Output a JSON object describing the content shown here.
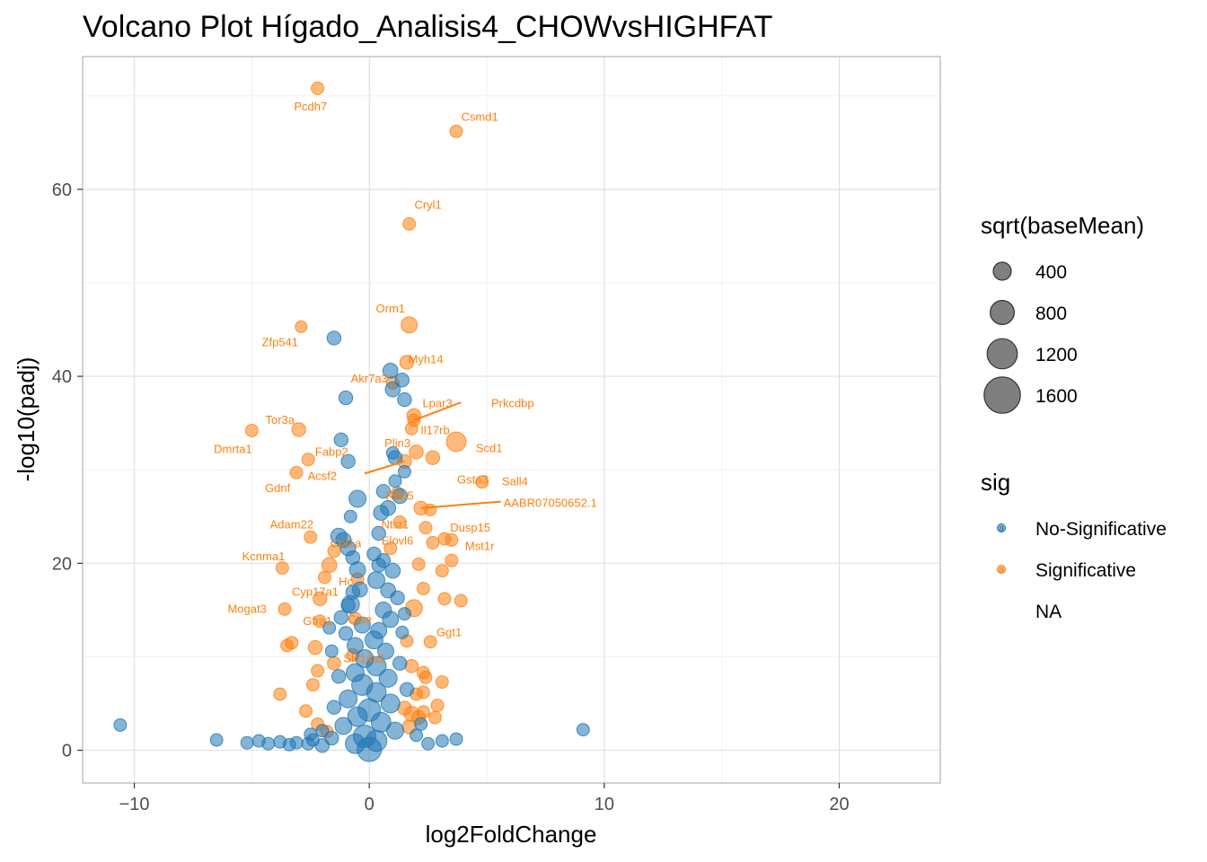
{
  "chart_data": {
    "type": "scatter",
    "title": "Volcano Plot Hígado_Analisis4_CHOWvsHIGHFAT",
    "xlabel": "log2FoldChange",
    "ylabel": "-log10(padj)",
    "xlim": [
      -12.2,
      24.3
    ],
    "ylim": [
      -3.5,
      74.2
    ],
    "x_ticks": [
      -10,
      0,
      10,
      20
    ],
    "y_ticks": [
      0,
      20,
      40,
      60
    ],
    "x_tick_labels": [
      "−10",
      "0",
      "10",
      "20"
    ],
    "y_tick_labels": [
      "0",
      "20",
      "40",
      "60"
    ],
    "grid": true,
    "legend_position": "right",
    "colors": {
      "No-Significative": "#1f77b4",
      "Significative": "#ff7f0e"
    },
    "legend": {
      "size_title": "sqrt(baseMean)",
      "size_entries": [
        {
          "label": "400",
          "value": 400
        },
        {
          "label": "800",
          "value": 800
        },
        {
          "label": "1200",
          "value": 1200
        },
        {
          "label": "1600",
          "value": 1600
        }
      ],
      "color_title": "sig",
      "color_entries": [
        {
          "label": "No-Significative",
          "key_glyph": "a",
          "color": "#1f77b4"
        },
        {
          "label": "Significative",
          "key_glyph": "a",
          "color": "#ff7f0e"
        },
        {
          "label": "NA",
          "key_glyph": "",
          "color": ""
        }
      ]
    },
    "series": [
      {
        "name": "Significative",
        "points": [
          {
            "x": -2.2,
            "y": 70.8,
            "size": 300,
            "label": "Pcdh7"
          },
          {
            "x": 3.7,
            "y": 66.2,
            "size": 300,
            "label": "Csmd1"
          },
          {
            "x": 1.7,
            "y": 56.3,
            "size": 300,
            "label": "Cryl1"
          },
          {
            "x": 1.7,
            "y": 45.5,
            "size": 600,
            "label": "Orm1"
          },
          {
            "x": -2.9,
            "y": 45.3,
            "size": 250,
            "label": "Zfp541"
          },
          {
            "x": 1.6,
            "y": 41.5,
            "size": 400,
            "label": "Myh14"
          },
          {
            "x": 1.0,
            "y": 39.3,
            "size": 300,
            "label": "Akr7a3"
          },
          {
            "x": 1.9,
            "y": 35.8,
            "size": 400,
            "label": "Lpar3"
          },
          {
            "x": 1.9,
            "y": 35.3,
            "size": 300,
            "label": "Prkcdbp"
          },
          {
            "x": -3.0,
            "y": 34.3,
            "size": 400,
            "label": "Tor3a"
          },
          {
            "x": -5.0,
            "y": 34.2,
            "size": 300,
            "label": "Dmrta1"
          },
          {
            "x": 1.8,
            "y": 34.4,
            "size": 300,
            "label": "Il17rb"
          },
          {
            "x": 3.7,
            "y": 33.0,
            "size": 1000,
            "label": "Scd1"
          },
          {
            "x": -2.6,
            "y": 31.1,
            "size": 300,
            "label": "Fabp2"
          },
          {
            "x": 2.0,
            "y": 31.9,
            "size": 400,
            "label": "Plin3"
          },
          {
            "x": 1.5,
            "y": 30.9,
            "size": 400,
            "label": "Acsf2"
          },
          {
            "x": 2.7,
            "y": 31.3,
            "size": 400,
            "label": "Gsta3"
          },
          {
            "x": 4.8,
            "y": 28.7,
            "size": 300,
            "label": "Sall4"
          },
          {
            "x": -3.1,
            "y": 29.7,
            "size": 300,
            "label": "Gdnf"
          },
          {
            "x": 1.2,
            "y": 27.5,
            "size": 300,
            "label": "Rbp5"
          },
          {
            "x": 2.2,
            "y": 25.9,
            "size": 400,
            "label": "AABR07050652.1"
          },
          {
            "x": 2.6,
            "y": 25.7,
            "size": 250
          },
          {
            "x": -2.5,
            "y": 22.8,
            "size": 300,
            "label": "Adam22"
          },
          {
            "x": 1.3,
            "y": 24.4,
            "size": 300,
            "label": "Ntsr1"
          },
          {
            "x": 2.4,
            "y": 23.8,
            "size": 300,
            "label": "Dusp15"
          },
          {
            "x": 3.2,
            "y": 22.6,
            "size": 300
          },
          {
            "x": 3.5,
            "y": 22.5,
            "size": 300
          },
          {
            "x": 2.7,
            "y": 22.2,
            "size": 300
          },
          {
            "x": 3.5,
            "y": 20.3,
            "size": 300,
            "label": "Mst1r"
          },
          {
            "x": -1.5,
            "y": 21.3,
            "size": 300,
            "label": "Cpt1a"
          },
          {
            "x": 0.9,
            "y": 21.6,
            "size": 300,
            "label": "Elovl6"
          },
          {
            "x": -3.7,
            "y": 19.5,
            "size": 300,
            "label": "Kcnma1"
          },
          {
            "x": -1.7,
            "y": 19.8,
            "size": 500
          },
          {
            "x": 2.1,
            "y": 19.9,
            "size": 300
          },
          {
            "x": 3.1,
            "y": 19.2,
            "size": 300
          },
          {
            "x": -1.9,
            "y": 18.5,
            "size": 300,
            "label": "Cyp17a1"
          },
          {
            "x": -0.5,
            "y": 18.3,
            "size": 300,
            "label": "Hc"
          },
          {
            "x": 2.3,
            "y": 17.3,
            "size": 300
          },
          {
            "x": -2.1,
            "y": 16.2,
            "size": 400
          },
          {
            "x": 3.2,
            "y": 16.2,
            "size": 300
          },
          {
            "x": 3.9,
            "y": 16.0,
            "size": 300
          },
          {
            "x": -3.6,
            "y": 15.1,
            "size": 300,
            "label": "Mogat3"
          },
          {
            "x": 1.9,
            "y": 15.2,
            "size": 700
          },
          {
            "x": -2.1,
            "y": 13.8,
            "size": 300,
            "label": "Gfra1"
          },
          {
            "x": -0.6,
            "y": 14.1,
            "size": 300,
            "label": "Ctse"
          },
          {
            "x": -3.3,
            "y": 11.5,
            "size": 300
          },
          {
            "x": -3.5,
            "y": 11.2,
            "size": 300
          },
          {
            "x": 2.6,
            "y": 11.6,
            "size": 300,
            "label": "Ggt1"
          },
          {
            "x": -2.3,
            "y": 11.0,
            "size": 400
          },
          {
            "x": 1.6,
            "y": 11.7,
            "size": 300
          },
          {
            "x": -0.7,
            "y": 10.2,
            "size": 300,
            "label": "Slc14a1"
          },
          {
            "x": -1.5,
            "y": 9.3,
            "size": 350
          },
          {
            "x": 1.8,
            "y": 9.0,
            "size": 350
          },
          {
            "x": -2.2,
            "y": 8.5,
            "size": 300
          },
          {
            "x": 2.3,
            "y": 8.3,
            "size": 300
          },
          {
            "x": 2.4,
            "y": 7.8,
            "size": 300
          },
          {
            "x": 3.1,
            "y": 7.3,
            "size": 300
          },
          {
            "x": -2.4,
            "y": 7.0,
            "size": 300
          },
          {
            "x": 2.0,
            "y": 6.0,
            "size": 300
          },
          {
            "x": 2.3,
            "y": 6.2,
            "size": 300
          },
          {
            "x": -3.8,
            "y": 6.0,
            "size": 300
          },
          {
            "x": -2.7,
            "y": 4.2,
            "size": 300
          },
          {
            "x": 2.9,
            "y": 4.8,
            "size": 300
          },
          {
            "x": 1.5,
            "y": 4.5,
            "size": 400
          },
          {
            "x": 1.8,
            "y": 3.9,
            "size": 500
          },
          {
            "x": 2.1,
            "y": 3.5,
            "size": 400
          },
          {
            "x": 2.8,
            "y": 3.5,
            "size": 300
          },
          {
            "x": -2.2,
            "y": 2.8,
            "size": 300
          },
          {
            "x": 1.7,
            "y": 2.5,
            "size": 400
          },
          {
            "x": 2.3,
            "y": 4.1,
            "size": 300
          },
          {
            "x": -1.8,
            "y": 2.0,
            "size": 300
          }
        ]
      },
      {
        "name": "No-Significative",
        "points": [
          {
            "x": -1.5,
            "y": 44.1,
            "size": 400
          },
          {
            "x": 0.9,
            "y": 40.6,
            "size": 500
          },
          {
            "x": 1.4,
            "y": 39.6,
            "size": 400
          },
          {
            "x": 1.0,
            "y": 38.6,
            "size": 500
          },
          {
            "x": -1.0,
            "y": 37.7,
            "size": 400
          },
          {
            "x": 1.5,
            "y": 37.5,
            "size": 400
          },
          {
            "x": -1.2,
            "y": 33.2,
            "size": 400
          },
          {
            "x": -0.9,
            "y": 30.9,
            "size": 400
          },
          {
            "x": 1.1,
            "y": 31.3,
            "size": 400
          },
          {
            "x": 1.0,
            "y": 31.8,
            "size": 300
          },
          {
            "x": 1.5,
            "y": 29.8,
            "size": 300
          },
          {
            "x": 1.1,
            "y": 28.8,
            "size": 300
          },
          {
            "x": -0.5,
            "y": 26.9,
            "size": 700
          },
          {
            "x": 0.6,
            "y": 27.7,
            "size": 400
          },
          {
            "x": 1.3,
            "y": 27.2,
            "size": 500
          },
          {
            "x": 0.8,
            "y": 25.9,
            "size": 500
          },
          {
            "x": 0.5,
            "y": 25.4,
            "size": 500
          },
          {
            "x": -0.8,
            "y": 25.0,
            "size": 300
          },
          {
            "x": 0.4,
            "y": 23.2,
            "size": 400
          },
          {
            "x": -1.3,
            "y": 22.9,
            "size": 600
          },
          {
            "x": -1.1,
            "y": 22.5,
            "size": 500
          },
          {
            "x": -0.9,
            "y": 21.6,
            "size": 500
          },
          {
            "x": 0.2,
            "y": 21.0,
            "size": 400
          },
          {
            "x": -0.7,
            "y": 20.6,
            "size": 400
          },
          {
            "x": 0.6,
            "y": 20.3,
            "size": 400
          },
          {
            "x": -0.5,
            "y": 19.3,
            "size": 600
          },
          {
            "x": 0.4,
            "y": 19.8,
            "size": 400
          },
          {
            "x": 1.0,
            "y": 19.2,
            "size": 500
          },
          {
            "x": 0.3,
            "y": 18.2,
            "size": 700
          },
          {
            "x": -0.4,
            "y": 17.2,
            "size": 500
          },
          {
            "x": 0.8,
            "y": 17.1,
            "size": 500
          },
          {
            "x": -0.7,
            "y": 16.9,
            "size": 400
          },
          {
            "x": 1.2,
            "y": 16.3,
            "size": 400
          },
          {
            "x": -0.9,
            "y": 15.5,
            "size": 400
          },
          {
            "x": -0.8,
            "y": 15.6,
            "size": 800
          },
          {
            "x": 0.6,
            "y": 15.0,
            "size": 600
          },
          {
            "x": -1.2,
            "y": 14.2,
            "size": 400
          },
          {
            "x": 0.9,
            "y": 14.0,
            "size": 600
          },
          {
            "x": -0.3,
            "y": 13.4,
            "size": 600
          },
          {
            "x": 0.4,
            "y": 12.8,
            "size": 600
          },
          {
            "x": -1.0,
            "y": 12.5,
            "size": 400
          },
          {
            "x": 0.2,
            "y": 11.8,
            "size": 800
          },
          {
            "x": -0.6,
            "y": 11.2,
            "size": 600
          },
          {
            "x": 0.7,
            "y": 10.6,
            "size": 600
          },
          {
            "x": -0.2,
            "y": 9.8,
            "size": 800
          },
          {
            "x": 0.3,
            "y": 9.0,
            "size": 1000
          },
          {
            "x": -0.6,
            "y": 8.3,
            "size": 800
          },
          {
            "x": 0.8,
            "y": 7.7,
            "size": 800
          },
          {
            "x": -0.3,
            "y": 7.0,
            "size": 1200
          },
          {
            "x": 0.3,
            "y": 6.2,
            "size": 1000
          },
          {
            "x": -0.9,
            "y": 5.5,
            "size": 800
          },
          {
            "x": 0.9,
            "y": 5.0,
            "size": 900
          },
          {
            "x": 0.0,
            "y": 4.3,
            "size": 1400
          },
          {
            "x": -0.5,
            "y": 3.6,
            "size": 1000
          },
          {
            "x": 0.5,
            "y": 3.0,
            "size": 1000
          },
          {
            "x": -1.1,
            "y": 2.6,
            "size": 700
          },
          {
            "x": 1.1,
            "y": 2.1,
            "size": 700
          },
          {
            "x": -0.2,
            "y": 1.5,
            "size": 1400
          },
          {
            "x": 0.3,
            "y": 1.0,
            "size": 1200
          },
          {
            "x": -0.6,
            "y": 0.7,
            "size": 1000
          },
          {
            "x": 0.0,
            "y": 0.1,
            "size": 1700
          },
          {
            "x": -10.6,
            "y": 2.7,
            "size": 300
          },
          {
            "x": -6.5,
            "y": 1.1,
            "size": 300
          },
          {
            "x": -5.2,
            "y": 0.8,
            "size": 300
          },
          {
            "x": -4.7,
            "y": 1.0,
            "size": 300
          },
          {
            "x": -4.3,
            "y": 0.7,
            "size": 300
          },
          {
            "x": -3.8,
            "y": 0.9,
            "size": 300
          },
          {
            "x": -3.4,
            "y": 0.6,
            "size": 300
          },
          {
            "x": -3.1,
            "y": 0.8,
            "size": 300
          },
          {
            "x": -2.6,
            "y": 0.7,
            "size": 300
          },
          {
            "x": -2.4,
            "y": 1.1,
            "size": 300
          },
          {
            "x": -2.0,
            "y": 0.5,
            "size": 400
          },
          {
            "x": -1.6,
            "y": 1.3,
            "size": 400
          },
          {
            "x": 2.5,
            "y": 0.7,
            "size": 300
          },
          {
            "x": 3.1,
            "y": 1.0,
            "size": 300
          },
          {
            "x": 3.7,
            "y": 1.2,
            "size": 300
          },
          {
            "x": 9.1,
            "y": 2.2,
            "size": 300
          },
          {
            "x": -1.5,
            "y": 4.6,
            "size": 400
          },
          {
            "x": 1.6,
            "y": 6.5,
            "size": 400
          },
          {
            "x": -1.3,
            "y": 7.9,
            "size": 400
          },
          {
            "x": 1.3,
            "y": 9.3,
            "size": 400
          },
          {
            "x": -1.6,
            "y": 10.6,
            "size": 300
          },
          {
            "x": 1.4,
            "y": 12.6,
            "size": 300
          },
          {
            "x": -1.7,
            "y": 13.1,
            "size": 300
          },
          {
            "x": 1.5,
            "y": 14.6,
            "size": 300
          },
          {
            "x": -2.0,
            "y": 2.1,
            "size": 300
          },
          {
            "x": 2.0,
            "y": 1.6,
            "size": 300
          },
          {
            "x": -2.5,
            "y": 1.7,
            "size": 300
          },
          {
            "x": 2.2,
            "y": 2.8,
            "size": 300
          }
        ]
      }
    ]
  }
}
